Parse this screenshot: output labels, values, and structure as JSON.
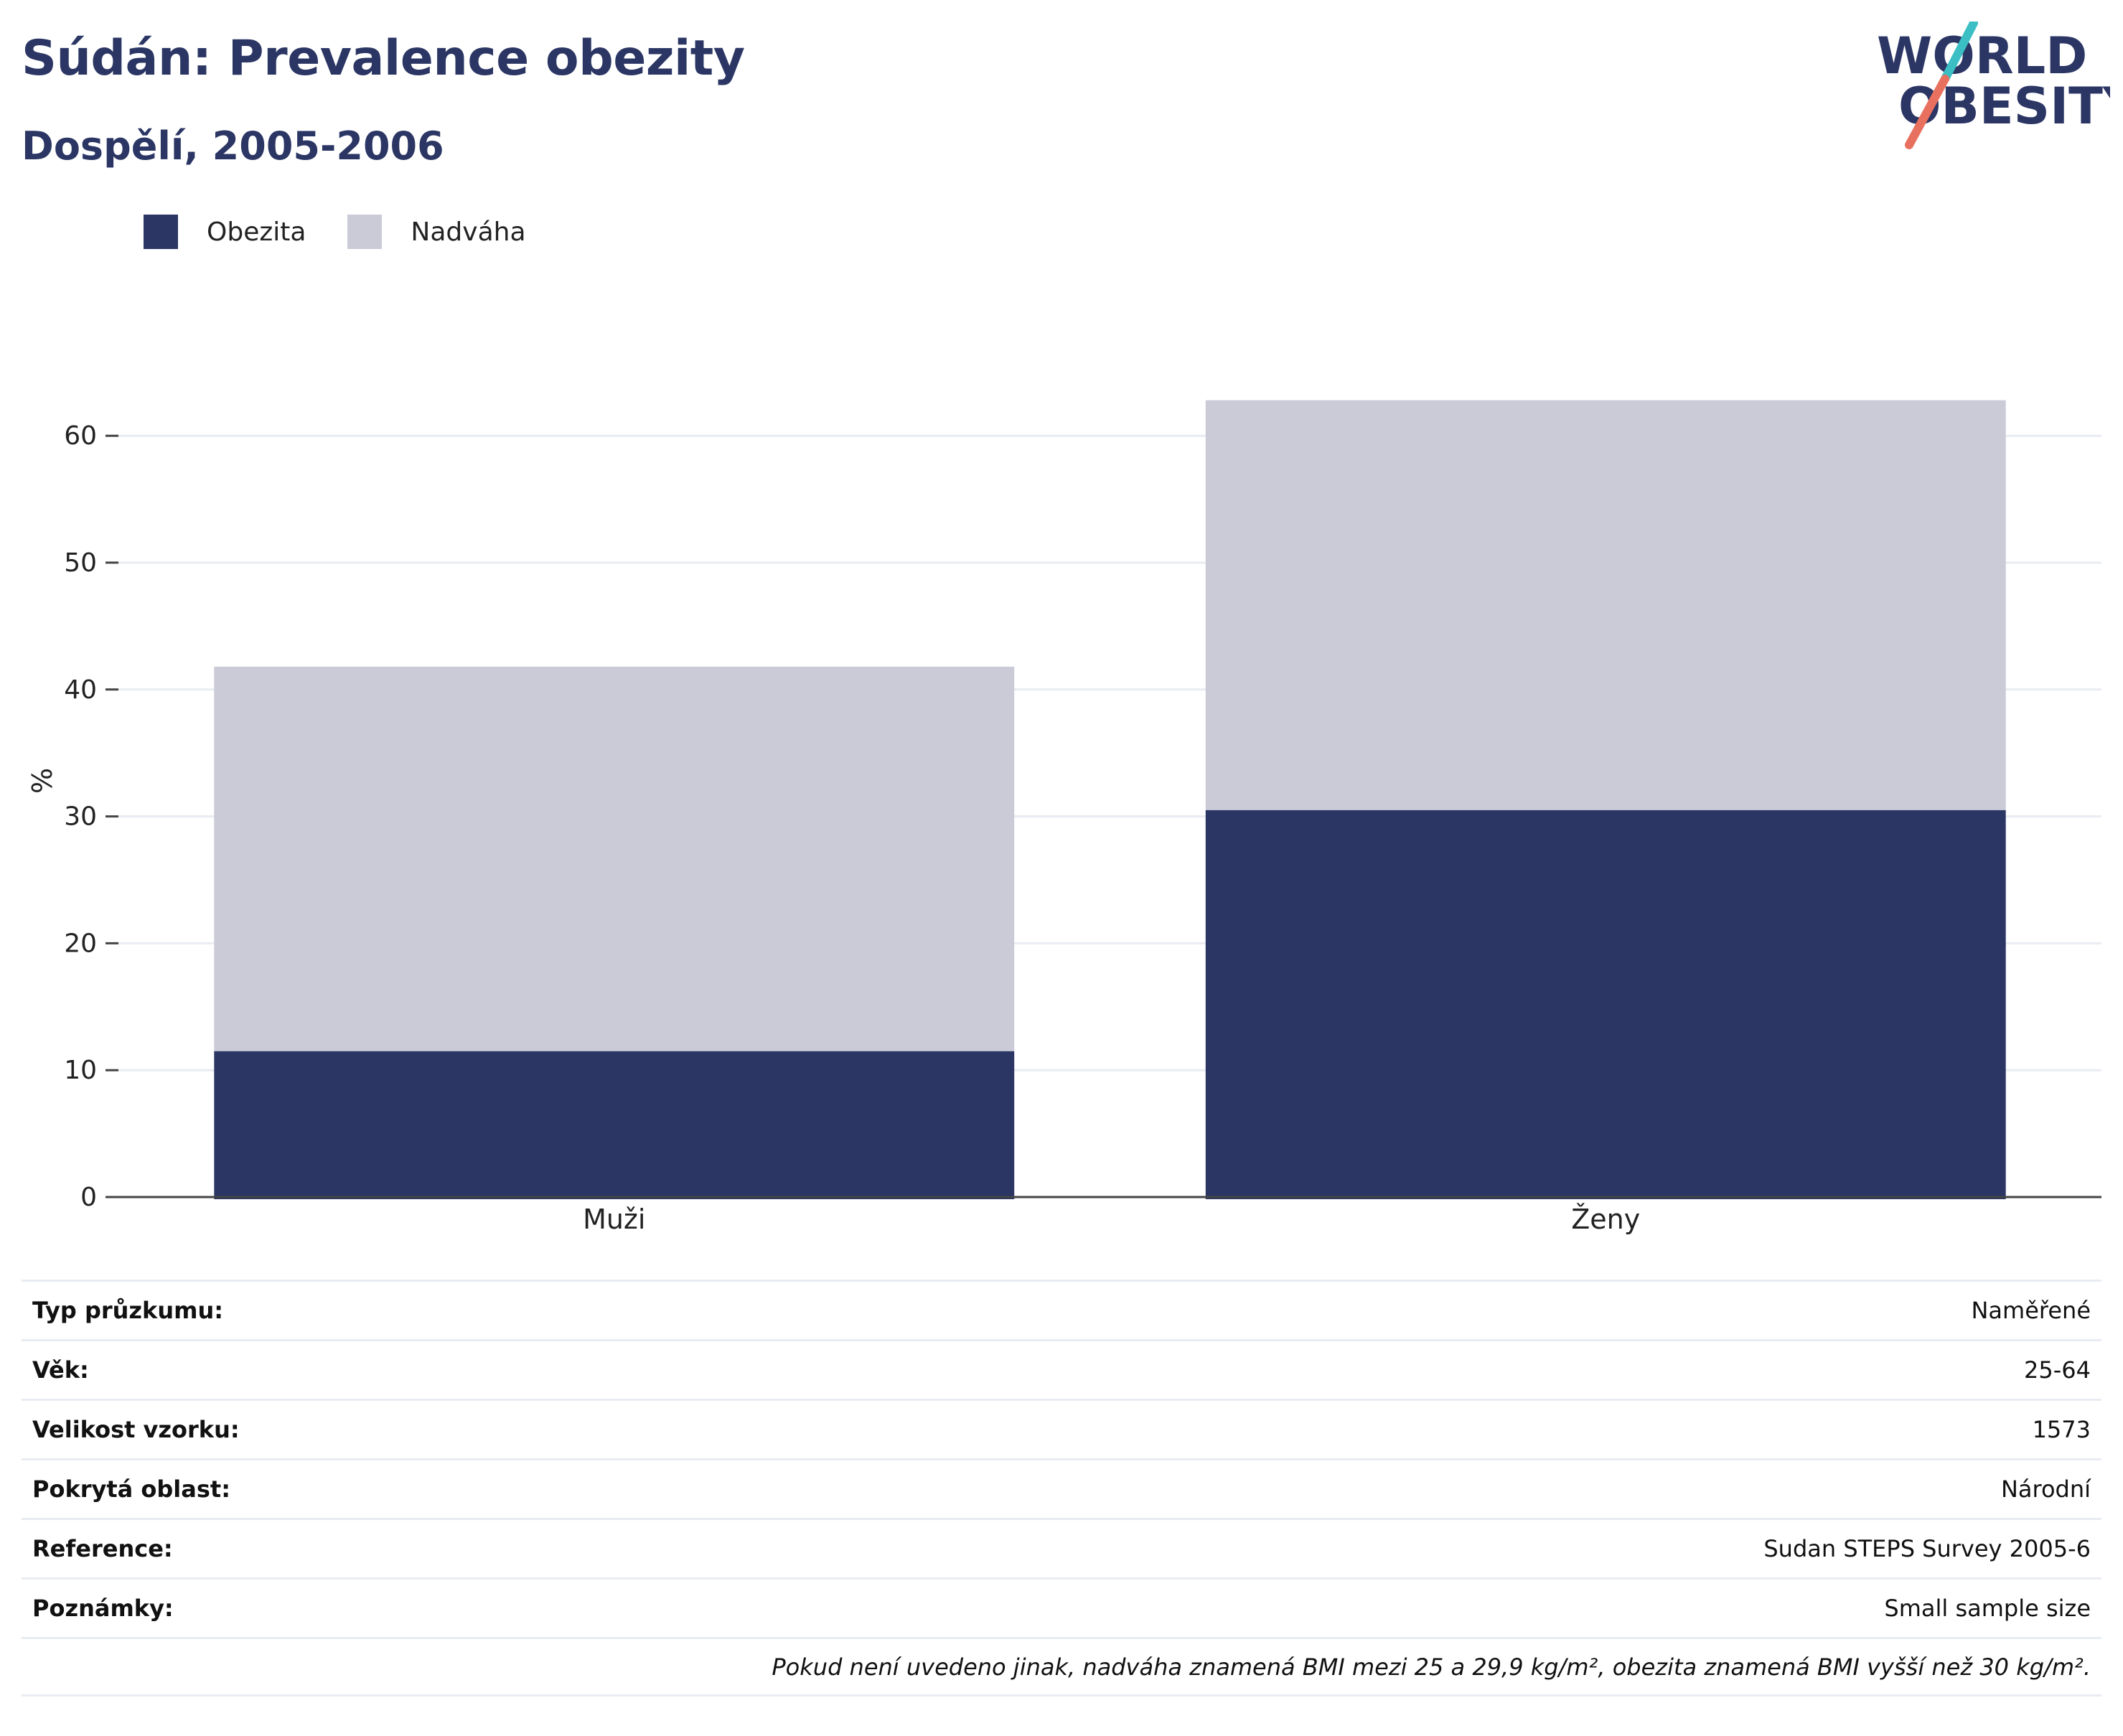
{
  "header": {
    "title": "Súdán: Prevalence obezity",
    "subtitle": "Dospělí, 2005-2006"
  },
  "logo": {
    "line1": "WORLD",
    "line2": "OBESITY",
    "color_text": "#2b3664",
    "color_slash_top": "#3bbfc4",
    "color_slash_bottom": "#e8705e"
  },
  "legend": [
    {
      "label": "Obezita",
      "color": "#2b3664"
    },
    {
      "label": "Nadváha",
      "color": "#cacbd7"
    }
  ],
  "chart_data": {
    "type": "bar",
    "stacked": true,
    "categories": [
      "Muži",
      "Ženy"
    ],
    "series": [
      {
        "name": "Obezita",
        "color": "#2b3664",
        "values": [
          11.5,
          30.5
        ]
      },
      {
        "name": "Nadváha",
        "color": "#cacbd7",
        "values": [
          30.3,
          32.3
        ]
      }
    ],
    "ylabel": "%",
    "ylim": [
      0,
      65
    ],
    "yticks": [
      0,
      10,
      20,
      30,
      40,
      50,
      60
    ],
    "grid": true,
    "legend_position": "top-left"
  },
  "info": [
    {
      "key": "Typ průzkumu:",
      "value": "Naměřené"
    },
    {
      "key": "Věk:",
      "value": "25-64"
    },
    {
      "key": "Velikost vzorku:",
      "value": "1573"
    },
    {
      "key": "Pokrytá oblast:",
      "value": "Národní"
    },
    {
      "key": "Reference:",
      "value": "Sudan STEPS Survey 2005-6"
    },
    {
      "key": "Poznámky:",
      "value": "Small sample size"
    }
  ],
  "footnote": "Pokud není uvedeno jinak, nadváha znamená BMI mezi 25 a 29,9 kg/m², obezita znamená BMI vyšší než 30 kg/m²."
}
